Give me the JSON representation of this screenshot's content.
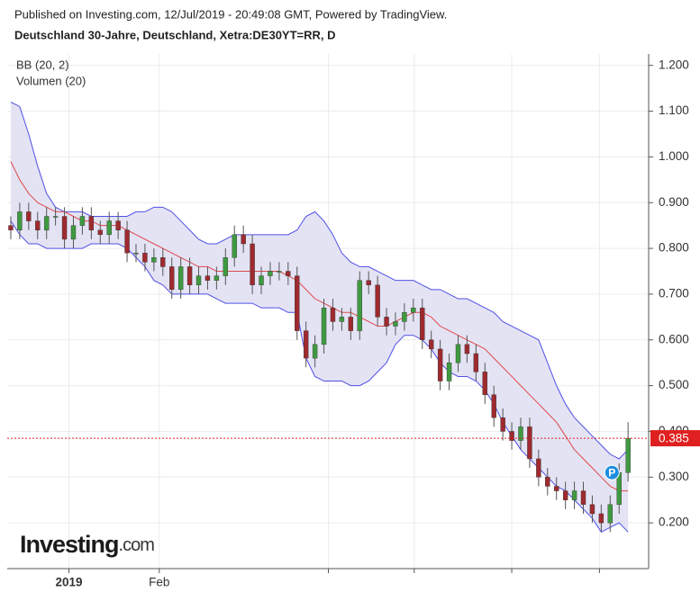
{
  "chart_data": {
    "type": "candlestick",
    "subtitle": "Published on Investing.com, 12/Jul/2019 - 20:49:08 GMT, Powered by TradingView.",
    "title": "Deutschland 30-Jahre, Deutschland, Xetra:DE30YT=RR, D",
    "indicators": [
      "BB (20, 2)",
      "Volumen (20)"
    ],
    "watermark": {
      "brand": "Investing",
      "suffix": ".com"
    },
    "marker_label": "P",
    "ylim": [
      0.1,
      1.225
    ],
    "yticks": [
      {
        "value": 0.2,
        "label": "0.200"
      },
      {
        "value": 0.3,
        "label": "0.300"
      },
      {
        "value": 0.4,
        "label": "0.400"
      },
      {
        "value": 0.5,
        "label": "0.500"
      },
      {
        "value": 0.6,
        "label": "0.600"
      },
      {
        "value": 0.7,
        "label": "0.700"
      },
      {
        "value": 0.8,
        "label": "0.800"
      },
      {
        "value": 0.9,
        "label": "0.900"
      },
      {
        "value": 1.0,
        "label": "1.000"
      },
      {
        "value": 1.1,
        "label": "1.100"
      },
      {
        "value": 1.2,
        "label": "1.200"
      }
    ],
    "xlim": [
      -0.4,
      71.3
    ],
    "xticks": [
      {
        "value": 6.5,
        "label": "2019"
      },
      {
        "value": 16.6,
        "label": "Feb"
      },
      {
        "value": 35.5,
        "label": null
      },
      {
        "value": 45.1,
        "label": null
      },
      {
        "value": 56,
        "label": null
      },
      {
        "value": 65.8,
        "label": null
      }
    ],
    "grid": true,
    "up_color": "#3f9a3f",
    "down_color": "#9e2a2f",
    "ohlc": {
      "open": [
        0.85,
        0.84,
        0.88,
        0.86,
        0.84,
        0.87,
        0.87,
        0.82,
        0.85,
        0.87,
        0.84,
        0.83,
        0.86,
        0.84,
        0.79,
        0.79,
        0.77,
        0.78,
        0.76,
        0.71,
        0.76,
        0.72,
        0.74,
        0.73,
        0.74,
        0.78,
        0.83,
        0.81,
        0.72,
        0.74,
        0.75,
        0.75,
        0.74,
        0.62,
        0.56,
        0.59,
        0.67,
        0.64,
        0.65,
        0.62,
        0.73,
        0.72,
        0.65,
        0.63,
        0.64,
        0.66,
        0.67,
        0.6,
        0.58,
        0.51,
        0.55,
        0.59,
        0.57,
        0.53,
        0.48,
        0.43,
        0.4,
        0.38,
        0.41,
        0.34,
        0.3,
        0.28,
        0.27,
        0.25,
        0.27,
        0.24,
        0.22,
        0.2,
        0.24,
        0.31
      ],
      "high": [
        0.87,
        0.9,
        0.9,
        0.88,
        0.89,
        0.89,
        0.89,
        0.87,
        0.89,
        0.89,
        0.86,
        0.88,
        0.88,
        0.86,
        0.81,
        0.81,
        0.8,
        0.8,
        0.78,
        0.78,
        0.78,
        0.76,
        0.76,
        0.76,
        0.8,
        0.85,
        0.85,
        0.83,
        0.76,
        0.77,
        0.77,
        0.77,
        0.76,
        0.64,
        0.61,
        0.69,
        0.69,
        0.67,
        0.67,
        0.75,
        0.75,
        0.74,
        0.67,
        0.66,
        0.68,
        0.69,
        0.69,
        0.62,
        0.6,
        0.57,
        0.61,
        0.61,
        0.59,
        0.55,
        0.5,
        0.45,
        0.42,
        0.43,
        0.43,
        0.36,
        0.32,
        0.3,
        0.29,
        0.29,
        0.29,
        0.26,
        0.24,
        0.26,
        0.33,
        0.42
      ],
      "low": [
        0.82,
        0.82,
        0.84,
        0.82,
        0.82,
        0.85,
        0.8,
        0.8,
        0.83,
        0.82,
        0.81,
        0.81,
        0.82,
        0.77,
        0.77,
        0.75,
        0.75,
        0.74,
        0.69,
        0.69,
        0.7,
        0.7,
        0.71,
        0.71,
        0.72,
        0.76,
        0.79,
        0.7,
        0.7,
        0.72,
        0.73,
        0.72,
        0.6,
        0.54,
        0.54,
        0.57,
        0.62,
        0.62,
        0.6,
        0.6,
        0.7,
        0.63,
        0.61,
        0.61,
        0.62,
        0.64,
        0.58,
        0.56,
        0.49,
        0.49,
        0.53,
        0.55,
        0.51,
        0.46,
        0.41,
        0.38,
        0.36,
        0.36,
        0.32,
        0.28,
        0.26,
        0.25,
        0.23,
        0.23,
        0.22,
        0.2,
        0.18,
        0.18,
        0.22,
        0.29
      ],
      "close": [
        0.84,
        0.88,
        0.86,
        0.84,
        0.87,
        0.87,
        0.82,
        0.85,
        0.87,
        0.84,
        0.83,
        0.86,
        0.84,
        0.79,
        0.79,
        0.77,
        0.78,
        0.76,
        0.71,
        0.76,
        0.72,
        0.74,
        0.73,
        0.74,
        0.78,
        0.83,
        0.81,
        0.72,
        0.74,
        0.75,
        0.75,
        0.74,
        0.62,
        0.56,
        0.59,
        0.67,
        0.64,
        0.65,
        0.62,
        0.73,
        0.72,
        0.65,
        0.63,
        0.64,
        0.66,
        0.67,
        0.6,
        0.58,
        0.51,
        0.55,
        0.59,
        0.57,
        0.53,
        0.48,
        0.43,
        0.4,
        0.38,
        0.41,
        0.34,
        0.3,
        0.28,
        0.27,
        0.25,
        0.27,
        0.24,
        0.22,
        0.2,
        0.24,
        0.31,
        0.385
      ]
    },
    "bands": {
      "line_color": "#5050e6",
      "fill": "#e3e3f4",
      "middle_color": "#e04a4a",
      "upper": [
        1.12,
        1.11,
        1.05,
        0.98,
        0.92,
        0.89,
        0.88,
        0.88,
        0.88,
        0.87,
        0.87,
        0.87,
        0.87,
        0.87,
        0.88,
        0.88,
        0.89,
        0.89,
        0.88,
        0.86,
        0.84,
        0.82,
        0.81,
        0.81,
        0.82,
        0.83,
        0.83,
        0.83,
        0.83,
        0.83,
        0.83,
        0.83,
        0.84,
        0.87,
        0.88,
        0.86,
        0.83,
        0.79,
        0.77,
        0.76,
        0.76,
        0.75,
        0.74,
        0.73,
        0.73,
        0.73,
        0.72,
        0.71,
        0.71,
        0.7,
        0.69,
        0.69,
        0.68,
        0.67,
        0.66,
        0.64,
        0.63,
        0.62,
        0.61,
        0.6,
        0.55,
        0.5,
        0.46,
        0.43,
        0.41,
        0.39,
        0.37,
        0.35,
        0.34,
        0.36
      ],
      "middle": [
        0.99,
        0.95,
        0.92,
        0.9,
        0.89,
        0.88,
        0.88,
        0.87,
        0.86,
        0.86,
        0.85,
        0.85,
        0.85,
        0.84,
        0.83,
        0.82,
        0.81,
        0.8,
        0.79,
        0.78,
        0.77,
        0.76,
        0.76,
        0.75,
        0.75,
        0.75,
        0.75,
        0.75,
        0.75,
        0.75,
        0.75,
        0.74,
        0.73,
        0.71,
        0.69,
        0.68,
        0.67,
        0.66,
        0.66,
        0.65,
        0.64,
        0.63,
        0.63,
        0.64,
        0.65,
        0.66,
        0.66,
        0.65,
        0.63,
        0.62,
        0.61,
        0.6,
        0.59,
        0.58,
        0.56,
        0.54,
        0.52,
        0.5,
        0.48,
        0.46,
        0.44,
        0.42,
        0.39,
        0.36,
        0.34,
        0.32,
        0.3,
        0.28,
        0.27,
        0.27
      ],
      "lower": [
        0.86,
        0.83,
        0.81,
        0.81,
        0.8,
        0.8,
        0.8,
        0.8,
        0.8,
        0.81,
        0.81,
        0.81,
        0.81,
        0.8,
        0.78,
        0.76,
        0.73,
        0.72,
        0.7,
        0.7,
        0.7,
        0.7,
        0.7,
        0.69,
        0.68,
        0.68,
        0.68,
        0.68,
        0.67,
        0.67,
        0.67,
        0.66,
        0.66,
        0.56,
        0.52,
        0.51,
        0.51,
        0.51,
        0.5,
        0.5,
        0.51,
        0.53,
        0.55,
        0.59,
        0.61,
        0.61,
        0.6,
        0.58,
        0.55,
        0.53,
        0.52,
        0.52,
        0.51,
        0.49,
        0.46,
        0.42,
        0.39,
        0.36,
        0.34,
        0.32,
        0.3,
        0.28,
        0.27,
        0.25,
        0.23,
        0.21,
        0.18,
        0.19,
        0.2,
        0.18
      ]
    },
    "last_price_color": "#e02020"
  }
}
